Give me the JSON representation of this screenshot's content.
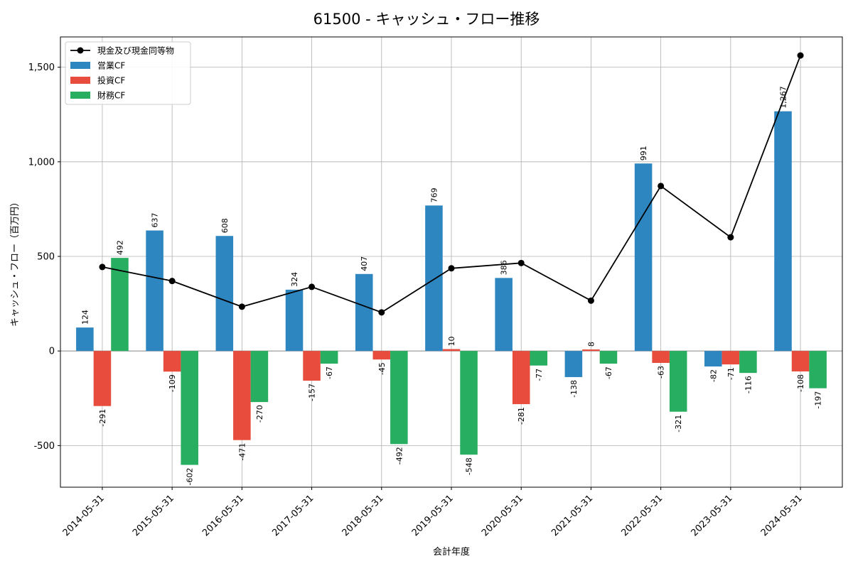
{
  "chart_data": {
    "type": "bar",
    "title": "61500 - キャッシュ・フロー推移",
    "xlabel": "会計年度",
    "ylabel": "キャッシュ・フロー（百万円）",
    "ylim": [
      -720,
      1660
    ],
    "yticks": [
      -500,
      0,
      500,
      1000,
      1500
    ],
    "ytick_labels": [
      "-500",
      "0",
      "500",
      "1,000",
      "1,500"
    ],
    "grid": true,
    "legend_position": "top-left",
    "categories": [
      "2014-05-31",
      "2015-05-31",
      "2016-05-31",
      "2017-05-31",
      "2018-05-31",
      "2019-05-31",
      "2020-05-31",
      "2021-05-31",
      "2022-05-31",
      "2023-05-31",
      "2024-05-31"
    ],
    "series": [
      {
        "name": "営業CF",
        "kind": "bar",
        "color": "#2e86c1",
        "values": [
          124,
          637,
          608,
          324,
          407,
          769,
          386,
          -138,
          991,
          -82,
          1267
        ],
        "labels": [
          "124",
          "637",
          "608",
          "324",
          "407",
          "769",
          "386",
          "-138",
          "991",
          "-82",
          "1,267"
        ]
      },
      {
        "name": "投資CF",
        "kind": "bar",
        "color": "#e74c3c",
        "values": [
          -291,
          -109,
          -471,
          -157,
          -45,
          10,
          -281,
          8,
          -63,
          -71,
          -108
        ],
        "labels": [
          "-291",
          "-109",
          "-471",
          "-157",
          "-45",
          "10",
          "-281",
          "8",
          "-63",
          "-71",
          "-108"
        ]
      },
      {
        "name": "財務CF",
        "kind": "bar",
        "color": "#27ae60",
        "values": [
          492,
          -602,
          -270,
          -67,
          -492,
          -548,
          -77,
          -67,
          -321,
          -116,
          -197
        ],
        "labels": [
          "492",
          "-602",
          "-270",
          "-67",
          "-492",
          "-548",
          "-77",
          "-67",
          "-321",
          "-116",
          "-197"
        ]
      },
      {
        "name": "現金及び現金同等物",
        "kind": "line",
        "color": "#000000",
        "values": [
          444,
          370,
          234,
          339,
          204,
          437,
          465,
          266,
          872,
          601,
          1562
        ]
      }
    ]
  }
}
